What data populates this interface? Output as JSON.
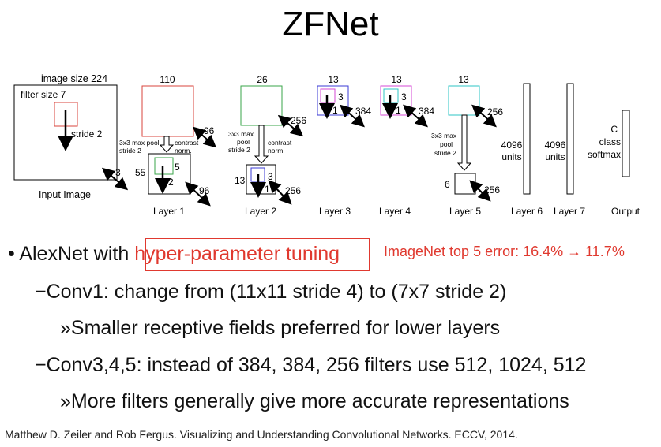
{
  "title": "ZFNet",
  "diagram": {
    "input": {
      "image_size": "image size 224",
      "filter_size": "filter size 7",
      "stride": "stride 2",
      "depth": "3",
      "caption": "Input Image"
    },
    "layer1": {
      "size": "110",
      "pool_label_1": "3x3 max pool",
      "pool_label_2": "stride 2",
      "contrast_1": "contrast",
      "contrast_2": "norm.",
      "depth": "96",
      "inner_size": "55",
      "inner_filter": "5",
      "inner_stride": "2",
      "inner_depth": "96",
      "caption": "Layer 1"
    },
    "layer2": {
      "size": "26",
      "pool_label_1": "3x3 max",
      "pool_label_2": "pool",
      "pool_label_3": "stride 2",
      "contrast_1": "contrast",
      "contrast_2": "norm.",
      "depth": "256",
      "inner_size": "13",
      "inner_filter": "3",
      "inner_stride": "1",
      "inner_depth": "256",
      "caption": "Layer 2"
    },
    "layer3": {
      "size": "13",
      "filter": "3",
      "stride": "1",
      "depth": "384",
      "caption": "Layer 3"
    },
    "layer4": {
      "size": "13",
      "filter": "3",
      "stride": "1",
      "depth": "384",
      "caption": "Layer 4"
    },
    "layer5": {
      "size": "13",
      "depth": "256",
      "pool_label_1": "3x3 max",
      "pool_label_2": "pool",
      "pool_label_3": "stride 2",
      "inner_size": "6",
      "inner_depth": "256",
      "caption": "Layer 5"
    },
    "layer6": {
      "units_1": "4096",
      "units_2": "units",
      "caption": "Layer 6"
    },
    "layer7": {
      "units_1": "4096",
      "units_2": "units",
      "caption": "Layer 7"
    },
    "output": {
      "line_1": "C",
      "line_2": "class",
      "line_3": "softmax",
      "caption": "Output"
    }
  },
  "bullets": {
    "main_prefix": "• AlexNet with ",
    "main_highlight": "hyper-parameter tuning",
    "note": "ImageNet top 5 error: 16.4% → 11.7%",
    "sub1": "−Conv1: change from (11x11 stride 4) to (7x7 stride 2)",
    "sub1_detail": "»Smaller receptive fields preferred for lower layers",
    "sub2": "−Conv3,4,5: instead of 384, 384, 256 filters use 512, 1024, 512",
    "sub2_detail": "»More filters generally give more accurate representations"
  },
  "citation": "Matthew D. Zeiler and Rob Fergus. Visualizing and Understanding Convolutional Networks. ECCV, 2014."
}
